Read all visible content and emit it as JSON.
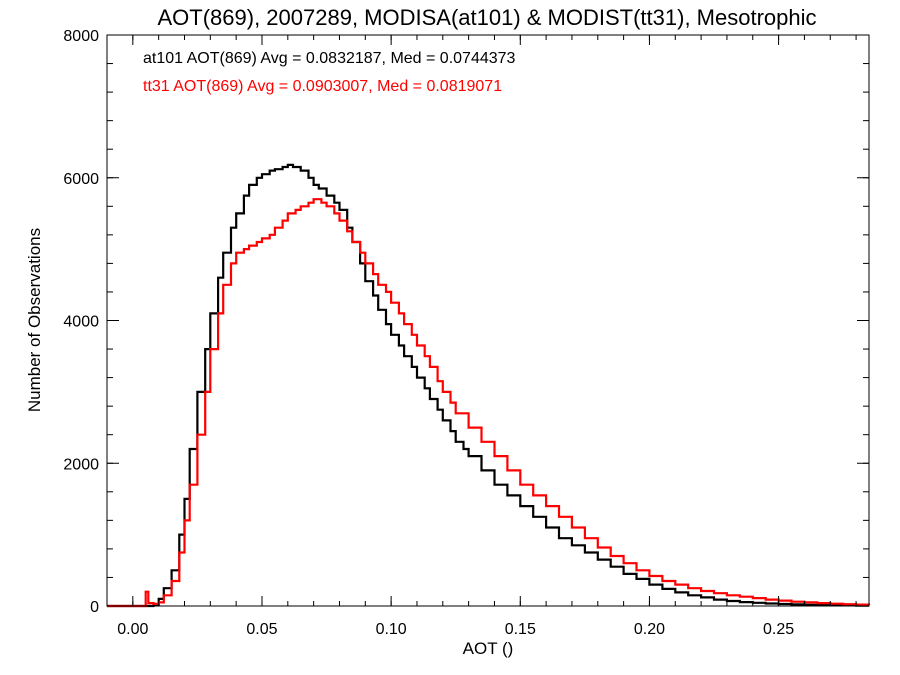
{
  "chart_data": {
    "type": "line",
    "step": true,
    "title": "AOT(869), 2007289, MODISA(at101) & MODIST(tt31), Mesotrophic",
    "xlabel": "AOT ()",
    "ylabel": "Number of Observations",
    "xlim": [
      -0.01,
      0.285
    ],
    "ylim": [
      0,
      8000
    ],
    "xticks": [
      0.0,
      0.05,
      0.1,
      0.15,
      0.2,
      0.25
    ],
    "xtick_labels": [
      "0.00",
      "0.05",
      "0.10",
      "0.15",
      "0.20",
      "0.25"
    ],
    "yticks": [
      0,
      2000,
      4000,
      6000,
      8000
    ],
    "ytick_labels": [
      "0",
      "2000",
      "4000",
      "6000",
      "8000"
    ],
    "grid": false,
    "annotations": [
      "at101 AOT(869) Avg = 0.0832187, Med = 0.0744373",
      "tt31 AOT(869) Avg = 0.0903007, Med = 0.0819071"
    ],
    "series": [
      {
        "color": "#000000",
        "x": [
          -0.01,
          0.0,
          0.005,
          0.008,
          0.01,
          0.012,
          0.015,
          0.018,
          0.02,
          0.022,
          0.025,
          0.028,
          0.03,
          0.033,
          0.035,
          0.038,
          0.04,
          0.043,
          0.045,
          0.048,
          0.05,
          0.053,
          0.055,
          0.058,
          0.06,
          0.062,
          0.065,
          0.068,
          0.07,
          0.072,
          0.075,
          0.078,
          0.08,
          0.083,
          0.085,
          0.088,
          0.09,
          0.093,
          0.095,
          0.098,
          0.1,
          0.103,
          0.105,
          0.108,
          0.11,
          0.113,
          0.115,
          0.118,
          0.12,
          0.123,
          0.125,
          0.128,
          0.13,
          0.135,
          0.14,
          0.145,
          0.15,
          0.155,
          0.16,
          0.165,
          0.17,
          0.175,
          0.18,
          0.185,
          0.19,
          0.195,
          0.2,
          0.205,
          0.21,
          0.215,
          0.22,
          0.225,
          0.23,
          0.235,
          0.24,
          0.245,
          0.25,
          0.255,
          0.26,
          0.265,
          0.27,
          0.275,
          0.28,
          0.285
        ],
        "y": [
          0,
          0,
          0,
          20,
          100,
          250,
          500,
          1000,
          1500,
          2200,
          3000,
          3600,
          4100,
          4600,
          4950,
          5300,
          5500,
          5750,
          5900,
          6000,
          6050,
          6100,
          6120,
          6150,
          6180,
          6150,
          6100,
          6000,
          5900,
          5850,
          5750,
          5650,
          5550,
          5300,
          5100,
          4800,
          4550,
          4350,
          4150,
          3950,
          3800,
          3650,
          3500,
          3350,
          3200,
          3050,
          2900,
          2750,
          2600,
          2450,
          2300,
          2200,
          2100,
          1900,
          1700,
          1550,
          1400,
          1250,
          1100,
          950,
          850,
          750,
          650,
          550,
          450,
          380,
          300,
          240,
          190,
          150,
          120,
          90,
          70,
          55,
          45,
          35,
          28,
          22,
          17,
          13,
          10,
          8,
          6,
          5
        ]
      },
      {
        "color": "#ff0000",
        "x": [
          -0.01,
          0.0,
          0.004,
          0.005,
          0.006,
          0.008,
          0.01,
          0.012,
          0.015,
          0.018,
          0.02,
          0.022,
          0.025,
          0.028,
          0.03,
          0.033,
          0.035,
          0.038,
          0.04,
          0.043,
          0.045,
          0.048,
          0.05,
          0.053,
          0.055,
          0.058,
          0.06,
          0.063,
          0.065,
          0.068,
          0.07,
          0.073,
          0.075,
          0.078,
          0.08,
          0.083,
          0.085,
          0.088,
          0.09,
          0.093,
          0.095,
          0.098,
          0.1,
          0.103,
          0.105,
          0.108,
          0.11,
          0.113,
          0.115,
          0.118,
          0.12,
          0.123,
          0.125,
          0.13,
          0.135,
          0.14,
          0.145,
          0.15,
          0.155,
          0.16,
          0.165,
          0.17,
          0.175,
          0.18,
          0.185,
          0.19,
          0.195,
          0.2,
          0.205,
          0.21,
          0.215,
          0.22,
          0.225,
          0.23,
          0.235,
          0.24,
          0.245,
          0.25,
          0.255,
          0.26,
          0.265,
          0.27,
          0.275,
          0.28,
          0.285
        ],
        "y": [
          0,
          0,
          0,
          200,
          40,
          30,
          50,
          150,
          350,
          750,
          1200,
          1700,
          2400,
          3000,
          3600,
          4100,
          4500,
          4800,
          4950,
          5000,
          5050,
          5100,
          5150,
          5200,
          5300,
          5400,
          5500,
          5550,
          5600,
          5650,
          5700,
          5650,
          5600,
          5500,
          5400,
          5250,
          5100,
          4950,
          4800,
          4650,
          4500,
          4400,
          4250,
          4100,
          3950,
          3800,
          3650,
          3500,
          3350,
          3150,
          3000,
          2850,
          2700,
          2500,
          2300,
          2100,
          1900,
          1700,
          1550,
          1400,
          1250,
          1100,
          950,
          820,
          700,
          600,
          500,
          420,
          350,
          300,
          250,
          210,
          180,
          150,
          130,
          110,
          90,
          75,
          60,
          50,
          40,
          32,
          25,
          20,
          15
        ]
      }
    ]
  }
}
